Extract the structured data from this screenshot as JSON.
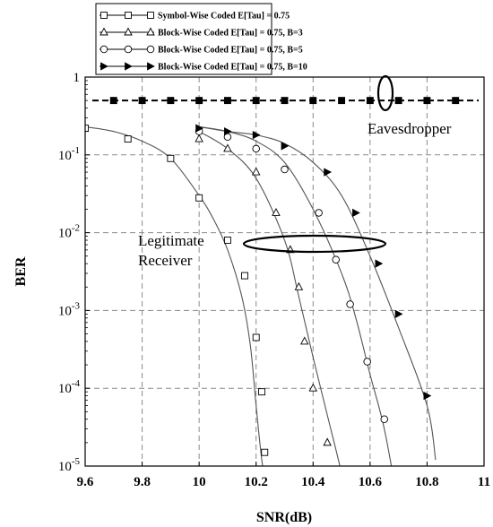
{
  "chart_data": {
    "type": "line",
    "xlabel": "SNR(dB)",
    "ylabel": "BER",
    "xlim": [
      9.6,
      11
    ],
    "ylim_log": [
      1e-05,
      1
    ],
    "y_scale": "log",
    "grid": true,
    "legend_position": "top-left",
    "x_ticks": [
      "9.6",
      "9.8",
      "10",
      "10.2",
      "10.4",
      "10.6",
      "10.8",
      "11"
    ],
    "y_ticks": [
      {
        "value": 1,
        "base": "1",
        "exp": ""
      },
      {
        "value": 0.1,
        "base": "10",
        "exp": "-1"
      },
      {
        "value": 0.01,
        "base": "10",
        "exp": "-2"
      },
      {
        "value": 0.001,
        "base": "10",
        "exp": "-3"
      },
      {
        "value": 0.0001,
        "base": "10",
        "exp": "-4"
      },
      {
        "value": 1e-05,
        "base": "10",
        "exp": "-5"
      }
    ],
    "series": [
      {
        "name": "Symbol-Wise Coded E[Tau] = 0.75",
        "marker": "square",
        "curve": [
          [
            9.6,
            0.23
          ],
          [
            9.7,
            0.2
          ],
          [
            9.8,
            0.15
          ],
          [
            9.9,
            0.09
          ],
          [
            10.0,
            0.03
          ],
          [
            10.05,
            0.015
          ],
          [
            10.1,
            0.006
          ],
          [
            10.15,
            0.0015
          ],
          [
            10.18,
            0.00035
          ],
          [
            10.2,
            6e-05
          ],
          [
            10.22,
            1.2e-05
          ],
          [
            10.25,
            2e-06
          ]
        ],
        "markers": [
          [
            9.6,
            0.22
          ],
          [
            9.75,
            0.16
          ],
          [
            9.9,
            0.09
          ],
          [
            10.0,
            0.028
          ],
          [
            10.1,
            0.008
          ],
          [
            10.16,
            0.0028
          ],
          [
            10.2,
            0.00045
          ],
          [
            10.22,
            9e-05
          ],
          [
            10.23,
            1.5e-05
          ]
        ]
      },
      {
        "name": "Block-Wise Coded E[Tau] = 0.75, B=3",
        "marker": "triangle",
        "curve": [
          [
            10.0,
            0.2
          ],
          [
            10.1,
            0.12
          ],
          [
            10.2,
            0.05
          ],
          [
            10.3,
            0.008
          ],
          [
            10.35,
            0.0015
          ],
          [
            10.4,
            0.00025
          ],
          [
            10.45,
            4.5e-05
          ],
          [
            10.5,
            8e-06
          ],
          [
            10.53,
            2e-06
          ]
        ],
        "markers": [
          [
            10.0,
            0.16
          ],
          [
            10.1,
            0.12
          ],
          [
            10.2,
            0.06
          ],
          [
            10.27,
            0.018
          ],
          [
            10.32,
            0.006
          ],
          [
            10.35,
            0.002
          ],
          [
            10.37,
            0.0004
          ],
          [
            10.4,
            0.0001
          ],
          [
            10.45,
            2e-05
          ]
        ]
      },
      {
        "name": "Block-Wise Coded E[Tau] = 0.75, B=5",
        "marker": "circle",
        "curve": [
          [
            10.0,
            0.23
          ],
          [
            10.1,
            0.2
          ],
          [
            10.2,
            0.15
          ],
          [
            10.3,
            0.08
          ],
          [
            10.4,
            0.02
          ],
          [
            10.5,
            0.003
          ],
          [
            10.55,
            0.0008
          ],
          [
            10.6,
            0.00015
          ],
          [
            10.65,
            3e-05
          ],
          [
            10.7,
            3e-06
          ]
        ],
        "markers": [
          [
            10.0,
            0.2
          ],
          [
            10.1,
            0.17
          ],
          [
            10.2,
            0.12
          ],
          [
            10.3,
            0.065
          ],
          [
            10.42,
            0.018
          ],
          [
            10.48,
            0.0045
          ],
          [
            10.53,
            0.0012
          ],
          [
            10.59,
            0.00022
          ],
          [
            10.65,
            4e-05
          ]
        ]
      },
      {
        "name": "Block-Wise Coded E[Tau] = 0.75, B=10",
        "marker": "filled-triangle-right",
        "curve": [
          [
            10.0,
            0.23
          ],
          [
            10.1,
            0.2
          ],
          [
            10.2,
            0.18
          ],
          [
            10.3,
            0.14
          ],
          [
            10.4,
            0.08
          ],
          [
            10.5,
            0.03
          ],
          [
            10.6,
            0.005
          ],
          [
            10.7,
            0.0006
          ],
          [
            10.8,
            6e-05
          ],
          [
            10.83,
            1.2e-05
          ]
        ],
        "markers": [
          [
            10.0,
            0.22
          ],
          [
            10.1,
            0.2
          ],
          [
            10.2,
            0.18
          ],
          [
            10.3,
            0.13
          ],
          [
            10.45,
            0.06
          ],
          [
            10.55,
            0.018
          ],
          [
            10.63,
            0.004
          ],
          [
            10.7,
            0.0009
          ],
          [
            10.8,
            8e-05
          ]
        ]
      }
    ],
    "eavesdropper": {
      "x": [
        9.6,
        9.7,
        9.8,
        9.9,
        10.0,
        10.1,
        10.2,
        10.3,
        10.4,
        10.5,
        10.6,
        10.7,
        10.8,
        10.9,
        11.0
      ],
      "y": 0.5
    },
    "annotations": [
      {
        "text": "Eavesdropper",
        "x": 10.74,
        "y": 0.18
      },
      {
        "text": "Legitimate",
        "x": 9.97,
        "y": 0.0023
      },
      {
        "text": "Receiver",
        "x": 9.97,
        "y": 0.00095
      }
    ]
  }
}
